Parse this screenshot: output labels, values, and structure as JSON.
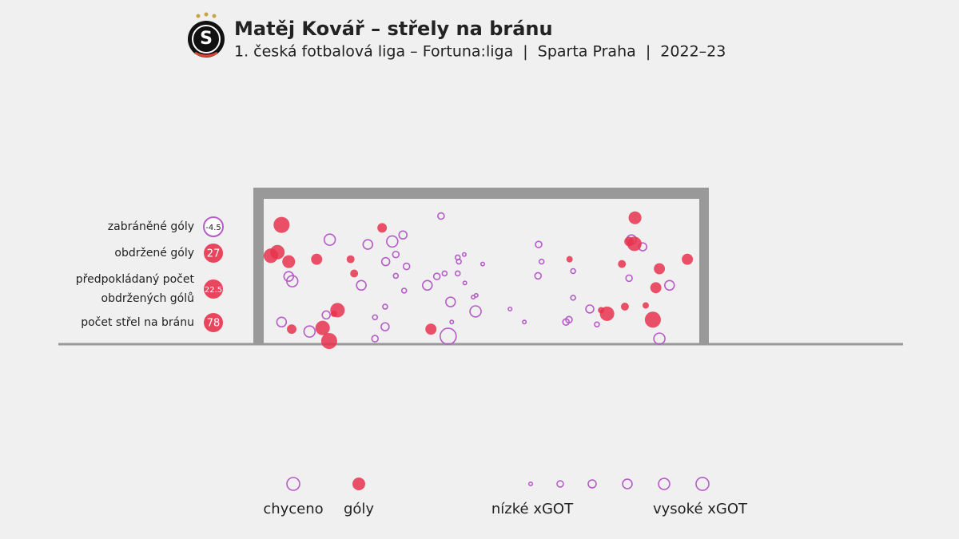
{
  "chart_data": {
    "type": "scatter",
    "logo": "S",
    "title": "Matěj Kovář – střely na bránu",
    "subtitle": "1. česká fotbalová liga – Fortuna:liga  |  Sparta Praha  |  2022–23",
    "xlim": [
      0,
      732
    ],
    "ylim": [
      0,
      244
    ],
    "stats": [
      {
        "label": [
          "zabráněné góly"
        ],
        "value": -4.5
      },
      {
        "label": [
          "obdržené góly"
        ],
        "value": 27
      },
      {
        "label": [
          "předpokládaný počet",
          "obdržených gólů"
        ],
        "value": 22.5
      },
      {
        "label": [
          "počet střel na bránu"
        ],
        "value": 78
      }
    ],
    "series": [
      {
        "name": "chyceno",
        "color": "#b65cc8",
        "filled": false,
        "x": [
          111,
          175,
          216,
          234,
          298,
          222,
          205,
          240,
          42,
          48,
          164,
          222,
          275,
          291,
          304,
          326,
          328,
          337,
          368,
          326,
          338,
          236,
          314,
          352,
          357,
          356,
          204,
          187,
          105,
          30,
          77,
          204,
          187,
          310,
          316,
          414,
          438,
          462,
          467,
          461,
          520,
          520,
          548,
          513,
          508,
          560,
          618,
          637,
          614,
          682,
          665
        ],
        "values": [
          175,
          167,
          172,
          183,
          215,
          150,
          138,
          130,
          113,
          105,
          98,
          114,
          98,
          113,
          118,
          145,
          138,
          150,
          134,
          118,
          102,
          89,
          70,
          78,
          81,
          54,
          62,
          44,
          48,
          36,
          20,
          28,
          8,
          12,
          36,
          58,
          36,
          167,
          138,
          114,
          122,
          77,
          58,
          40,
          36,
          32,
          175,
          163,
          110,
          98,
          8
        ],
        "sizes": [
          0.45,
          0.36,
          0.45,
          0.27,
          0.18,
          0.18,
          0.27,
          0.18,
          0.36,
          0.45,
          0.36,
          0.09,
          0.36,
          0.18,
          0.09,
          0.09,
          0.09,
          0.02,
          0.02,
          0.09,
          0.02,
          0.09,
          0.36,
          0.02,
          0.02,
          0.45,
          0.09,
          0.09,
          0.27,
          0.36,
          0.45,
          0.27,
          0.18,
          0.73,
          0.02,
          0.02,
          0.02,
          0.18,
          0.09,
          0.18,
          0.09,
          0.09,
          0.27,
          0.18,
          0.18,
          0.09,
          0.36,
          0.27,
          0.18,
          0.36,
          0.45
        ]
      },
      {
        "name": "góly",
        "color": "#e8334d",
        "filled": true,
        "x": [
          30,
          23,
          12,
          42,
          89,
          146,
          152,
          199,
          124,
          99,
          110,
          47,
          281,
          624,
          614,
          623,
          602,
          665,
          712,
          659,
          514,
          567,
          577,
          607,
          642,
          654,
          118
        ],
        "values": [
          200,
          154,
          148,
          138,
          142,
          142,
          118,
          195,
          56,
          26,
          4,
          24,
          24,
          212,
          172,
          168,
          134,
          126,
          142,
          94,
          142,
          56,
          50,
          62,
          64,
          40,
          50
        ],
        "sizes": [
          0.73,
          0.64,
          0.64,
          0.55,
          0.45,
          0.27,
          0.27,
          0.36,
          0.64,
          0.64,
          0.73,
          0.36,
          0.45,
          0.55,
          0.36,
          0.64,
          0.27,
          0.45,
          0.45,
          0.45,
          0.18,
          0.18,
          0.64,
          0.27,
          0.18,
          0.73,
          0.18
        ]
      }
    ],
    "size_legend": {
      "values": [
        0.02,
        0.18,
        0.27,
        0.36,
        0.45,
        0.55
      ],
      "labels": [
        "nízké xGOT",
        "vysoké xGOT"
      ]
    }
  }
}
